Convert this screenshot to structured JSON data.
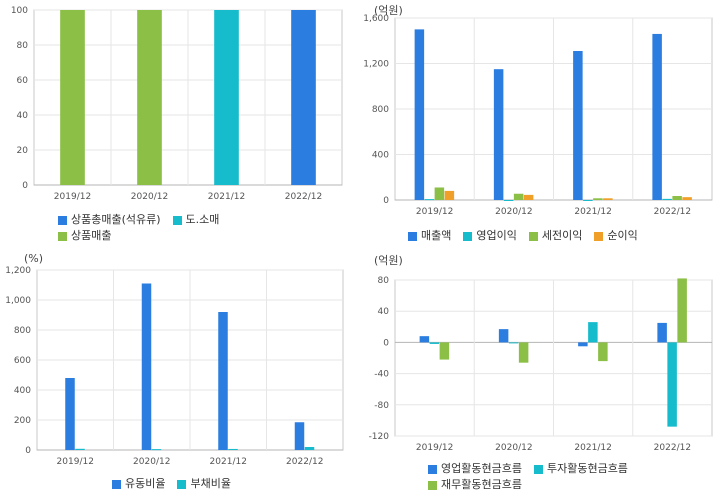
{
  "colors": {
    "blue": "#2b7de0",
    "teal": "#17bccc",
    "green": "#8cbf45",
    "orange": "#f0a028",
    "frame": "#c8c8c8",
    "grid": "#e6e6e6",
    "zero": "#b4b4b4",
    "tick_text": "#555555"
  },
  "chart_data": [
    {
      "id": "p1",
      "type": "bar",
      "unit": "",
      "categories": [
        "2019/12",
        "2020/12",
        "2021/12",
        "2022/12"
      ],
      "yticks": [
        "0",
        "20",
        "40",
        "60",
        "80",
        "100"
      ],
      "ylim": [
        0,
        100
      ],
      "series": [
        {
          "name": "상품총매출(석유류)",
          "color": "#2b7de0",
          "values": [
            null,
            null,
            null,
            100
          ]
        },
        {
          "name": "도.소매",
          "color": "#17bccc",
          "values": [
            null,
            null,
            100,
            null
          ]
        },
        {
          "name": "상품매출",
          "color": "#8cbf45",
          "values": [
            100,
            100,
            null,
            null
          ]
        }
      ],
      "grid": true,
      "legend_position": "bottom",
      "legend_rows": [
        [
          "상품총매출(석유류)",
          "도.소매"
        ],
        [
          "상품매출"
        ]
      ]
    },
    {
      "id": "p2",
      "type": "bar",
      "unit": "(억원)",
      "categories": [
        "2019/12",
        "2020/12",
        "2021/12",
        "2022/12"
      ],
      "yticks": [
        "0",
        "400",
        "800",
        "1,200",
        "1,600"
      ],
      "ylim": [
        0,
        1600
      ],
      "series": [
        {
          "name": "매출액",
          "color": "#2b7de0",
          "values": [
            1500,
            1150,
            1310,
            1460
          ]
        },
        {
          "name": "영업이익",
          "color": "#17bccc",
          "values": [
            8,
            -8,
            -8,
            10
          ]
        },
        {
          "name": "세전이익",
          "color": "#8cbf45",
          "values": [
            110,
            55,
            15,
            35
          ]
        },
        {
          "name": "순이익",
          "color": "#f0a028",
          "values": [
            80,
            45,
            15,
            25
          ]
        }
      ],
      "grid": true,
      "legend_position": "bottom",
      "legend_rows": [
        [
          "매출액",
          "영업이익",
          "세전이익",
          "순이익"
        ]
      ]
    },
    {
      "id": "p3",
      "type": "bar",
      "unit": "(%)",
      "categories": [
        "2019/12",
        "2020/12",
        "2021/12",
        "2022/12"
      ],
      "yticks": [
        "0",
        "200",
        "400",
        "600",
        "800",
        "1,000",
        "1,200"
      ],
      "ylim": [
        0,
        1200
      ],
      "series": [
        {
          "name": "유동비율",
          "color": "#2b7de0",
          "values": [
            480,
            1110,
            920,
            185
          ]
        },
        {
          "name": "부채비율",
          "color": "#17bccc",
          "values": [
            8,
            6,
            7,
            20
          ]
        }
      ],
      "grid": true,
      "legend_position": "bottom",
      "legend_rows": [
        [
          "유동비율",
          "부채비율"
        ]
      ]
    },
    {
      "id": "p4",
      "type": "bar",
      "unit": "(억원)",
      "categories": [
        "2019/12",
        "2020/12",
        "2021/12",
        "2022/12"
      ],
      "yticks": [
        "-120",
        "-80",
        "-40",
        "0",
        "40",
        "80"
      ],
      "ylim": [
        -120,
        80
      ],
      "series": [
        {
          "name": "영업활동현금흐름",
          "color": "#2b7de0",
          "values": [
            8,
            17,
            -5,
            25
          ]
        },
        {
          "name": "투자활동현금흐름",
          "color": "#17bccc",
          "values": [
            -2,
            0,
            26,
            -108
          ]
        },
        {
          "name": "재무활동현금흐름",
          "color": "#8cbf45",
          "values": [
            -22,
            -26,
            -24,
            82
          ]
        }
      ],
      "grid": true,
      "legend_position": "bottom",
      "legend_rows": [
        [
          "영업활동현금흐름",
          "투자활동현금흐름"
        ],
        [
          "재무활동현금흐름"
        ]
      ]
    }
  ]
}
